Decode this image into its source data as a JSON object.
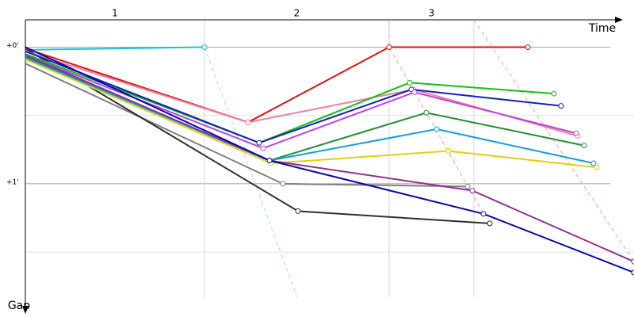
{
  "chart_data": {
    "type": "line",
    "x_label": "Time",
    "y_label": "Gap",
    "xlim": [
      0,
      768
    ],
    "ylim": [
      -0.2,
      1.83
    ],
    "y_inverted": true,
    "xticks": [
      0,
      226,
      459,
      566
    ],
    "x_labels": [
      "1",
      "2",
      "3"
    ],
    "yticks": [
      {
        "value": 0,
        "label": "+0'"
      },
      {
        "value": 1,
        "label": "+1'"
      }
    ],
    "minor_yticks": [
      0.5,
      1.5
    ],
    "grid": true,
    "series": [
      {
        "color": "#9ee0e0",
        "dashed": true,
        "x": [
          226,
          343
        ],
        "values": [
          0,
          1.83
        ]
      },
      {
        "color": "#f5a0a0",
        "dashed": true,
        "x": [
          459,
          459,
          578
        ],
        "values": [
          -0.2,
          0,
          1.22
        ]
      },
      {
        "color": "#f5a0a0",
        "dashed": true,
        "x": [
          566,
          768
        ],
        "values": [
          -0.2,
          1.57
        ]
      },
      {
        "color": "#20c0d0",
        "x": [
          0,
          226
        ],
        "values": [
          0.02,
          0
        ]
      },
      {
        "color": "#808080",
        "x": [
          0,
          325,
          558
        ],
        "values": [
          0.12,
          1.0,
          1.02
        ]
      },
      {
        "color": "#303030",
        "x": [
          0,
          344,
          586
        ],
        "values": [
          0.01,
          1.2,
          1.29
        ]
      },
      {
        "color": "#e01010",
        "x": [
          0,
          281,
          459,
          634
        ],
        "values": [
          0.01,
          0.55,
          0,
          0
        ]
      },
      {
        "color": "#f080a0",
        "x": [
          0,
          281,
          490,
          697
        ],
        "values": [
          0.03,
          0.55,
          0.31,
          0.65
        ]
      },
      {
        "color": "#10c010",
        "x": [
          0,
          295,
          485,
          667
        ],
        "values": [
          0.05,
          0.7,
          0.26,
          0.34
        ]
      },
      {
        "color": "#1020c0",
        "x": [
          0,
          295,
          487,
          676
        ],
        "values": [
          0.03,
          0.7,
          0.31,
          0.43
        ]
      },
      {
        "color": "#c040e0",
        "x": [
          0,
          300,
          491,
          695
        ],
        "values": [
          0.06,
          0.74,
          0.33,
          0.63
        ]
      },
      {
        "color": "#209030",
        "x": [
          0,
          308,
          506,
          705
        ],
        "values": [
          0.07,
          0.83,
          0.48,
          0.72
        ]
      },
      {
        "color": "#10a0e0",
        "x": [
          0,
          308,
          519,
          717
        ],
        "values": [
          0.08,
          0.83,
          0.6,
          0.85
        ]
      },
      {
        "color": "#e0d010",
        "x": [
          0,
          310,
          534,
          721
        ],
        "values": [
          0.09,
          0.85,
          0.76,
          0.88
        ]
      },
      {
        "color": "#903090",
        "x": [
          0,
          308,
          564,
          768
        ],
        "values": [
          0.06,
          0.83,
          1.05,
          1.57
        ]
      },
      {
        "color": "#0808b0",
        "x": [
          0,
          308,
          578,
          768
        ],
        "values": [
          0,
          0.83,
          1.22,
          1.65
        ]
      }
    ]
  }
}
